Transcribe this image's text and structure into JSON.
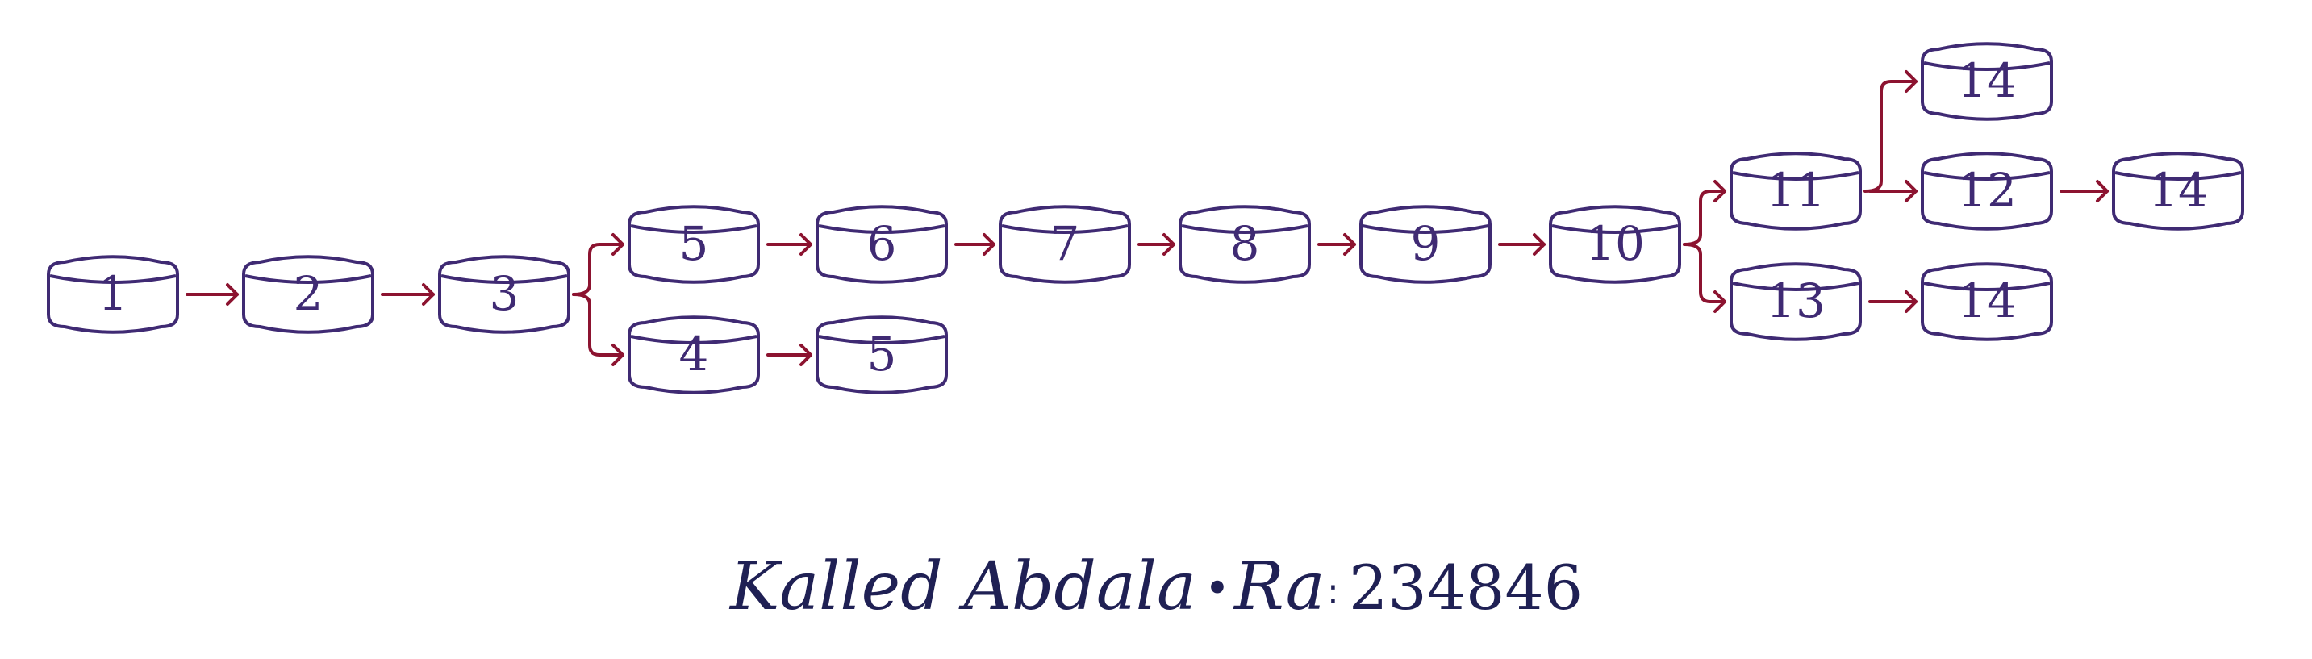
{
  "diagram": {
    "colors": {
      "node_stroke": "#3f2a73",
      "node_label": "#3f2a73",
      "edge": "#8c1330",
      "footer": "#1f2054"
    },
    "nodes": [
      {
        "id": "n1",
        "label": "1"
      },
      {
        "id": "n2",
        "label": "2"
      },
      {
        "id": "n3",
        "label": "3"
      },
      {
        "id": "n5a",
        "label": "5"
      },
      {
        "id": "n6",
        "label": "6"
      },
      {
        "id": "n7",
        "label": "7"
      },
      {
        "id": "n8",
        "label": "8"
      },
      {
        "id": "n9",
        "label": "9"
      },
      {
        "id": "n10",
        "label": "10"
      },
      {
        "id": "n4",
        "label": "4"
      },
      {
        "id": "n5b",
        "label": "5"
      },
      {
        "id": "n11",
        "label": "11"
      },
      {
        "id": "n13",
        "label": "13"
      },
      {
        "id": "n14top",
        "label": "14"
      },
      {
        "id": "n12",
        "label": "12"
      },
      {
        "id": "n14right",
        "label": "14"
      },
      {
        "id": "n14bottom",
        "label": "14"
      }
    ],
    "edges": [
      {
        "from": "n1",
        "to": "n2"
      },
      {
        "from": "n2",
        "to": "n3"
      },
      {
        "from": "n3",
        "to": "n5a"
      },
      {
        "from": "n3",
        "to": "n4"
      },
      {
        "from": "n5a",
        "to": "n6"
      },
      {
        "from": "n6",
        "to": "n7"
      },
      {
        "from": "n7",
        "to": "n8"
      },
      {
        "from": "n8",
        "to": "n9"
      },
      {
        "from": "n9",
        "to": "n10"
      },
      {
        "from": "n10",
        "to": "n11"
      },
      {
        "from": "n10",
        "to": "n13"
      },
      {
        "from": "n4",
        "to": "n5b"
      },
      {
        "from": "n11",
        "to": "n14top"
      },
      {
        "from": "n11",
        "to": "n12"
      },
      {
        "from": "n12",
        "to": "n14right"
      },
      {
        "from": "n13",
        "to": "n14bottom"
      }
    ]
  },
  "footer": {
    "name": "Kalled Abdala",
    "separator": "•",
    "ra_label": "Ra",
    "colon": ":",
    "ra_number": "234846"
  }
}
